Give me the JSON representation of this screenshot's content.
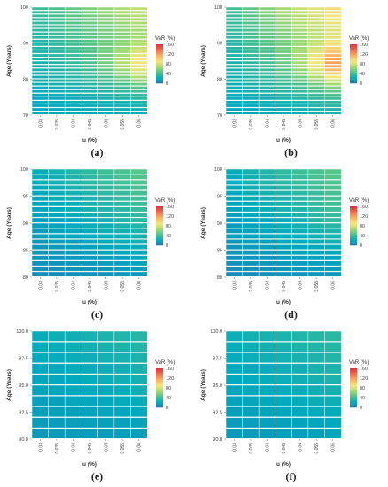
{
  "chart_data": [
    {
      "type": "heatmap",
      "panel_label": "(a)",
      "xlabel": "u (%)",
      "ylabel": "Age (Years)",
      "x_ticks": [
        "0.03",
        "0.035",
        "0.04",
        "0.045",
        "0.05",
        "0.055",
        "0.06"
      ],
      "y_ticks": [
        "70",
        "80",
        "90",
        "100"
      ],
      "ylim": [
        70,
        100
      ],
      "rows": 30,
      "cols": 7,
      "legend_title": "VaR (%)",
      "legend_ticks": [
        "160",
        "120",
        "80",
        "40",
        "0"
      ],
      "legend_range": [
        0,
        160
      ],
      "corner_values": {
        "low_u_low_age": 18,
        "low_u_high_age": 38,
        "high_u_low_age": 22,
        "high_u_high_age": 75,
        "peak": 118,
        "peak_at_u": "0.06",
        "peak_at_age": 84
      }
    },
    {
      "type": "heatmap",
      "panel_label": "(b)",
      "xlabel": "u (%)",
      "ylabel": "Age (Years)",
      "x_ticks": [
        "0.03",
        "0.035",
        "0.04",
        "0.045",
        "0.05",
        "0.055",
        "0.06"
      ],
      "y_ticks": [
        "70",
        "80",
        "90",
        "100"
      ],
      "ylim": [
        70,
        100
      ],
      "rows": 30,
      "cols": 7,
      "legend_title": "VaR (%)",
      "legend_ticks": [
        "160",
        "120",
        "80",
        "40",
        "0"
      ],
      "legend_range": [
        0,
        160
      ],
      "corner_values": {
        "low_u_low_age": 18,
        "low_u_high_age": 40,
        "high_u_low_age": 25,
        "high_u_high_age": 95,
        "peak": 155,
        "peak_at_u": "0.06",
        "peak_at_age": 84
      }
    },
    {
      "type": "heatmap",
      "panel_label": "(c)",
      "xlabel": "u (%)",
      "ylabel": "Age (Years)",
      "x_ticks": [
        "0.03",
        "0.035",
        "0.04",
        "0.045",
        "0.05",
        "0.055",
        "0.06"
      ],
      "y_ticks": [
        "80",
        "85",
        "90",
        "95",
        "100"
      ],
      "ylim": [
        80,
        100
      ],
      "rows": 20,
      "cols": 7,
      "legend_title": "VaR (%)",
      "legend_ticks": [
        "160",
        "120",
        "80",
        "40",
        "0"
      ],
      "legend_range": [
        0,
        160
      ],
      "corner_values": {
        "low_u_low_age": 8,
        "low_u_high_age": 22,
        "high_u_low_age": 12,
        "high_u_high_age": 48,
        "peak": 50,
        "peak_at_u": "0.06",
        "peak_at_age": 92
      }
    },
    {
      "type": "heatmap",
      "panel_label": "(d)",
      "xlabel": "u (%)",
      "ylabel": "Age (Years)",
      "x_ticks": [
        "0.03",
        "0.035",
        "0.04",
        "0.045",
        "0.05",
        "0.055",
        "0.06"
      ],
      "y_ticks": [
        "80",
        "85",
        "90",
        "95",
        "100"
      ],
      "ylim": [
        80,
        100
      ],
      "rows": 20,
      "cols": 7,
      "legend_title": "VaR (%)",
      "legend_ticks": [
        "160",
        "120",
        "80",
        "40",
        "0"
      ],
      "legend_range": [
        0,
        160
      ],
      "corner_values": {
        "low_u_low_age": 8,
        "low_u_high_age": 22,
        "high_u_low_age": 12,
        "high_u_high_age": 48,
        "peak": 52,
        "peak_at_u": "0.06",
        "peak_at_age": 92
      }
    },
    {
      "type": "heatmap",
      "panel_label": "(e)",
      "xlabel": "u (%)",
      "ylabel": "Age (Years)",
      "x_ticks": [
        "0.03",
        "0.035",
        "0.04",
        "0.045",
        "0.05",
        "0.055",
        "0.06"
      ],
      "y_ticks": [
        "90.0",
        "92.5",
        "95.0",
        "97.5",
        "100.0"
      ],
      "ylim": [
        90,
        100
      ],
      "rows": 10,
      "cols": 7,
      "legend_title": "VaR (%)",
      "legend_ticks": [
        "160",
        "120",
        "80",
        "40",
        "0"
      ],
      "legend_range": [
        0,
        160
      ],
      "corner_values": {
        "low_u_low_age": 12,
        "low_u_high_age": 22,
        "high_u_low_age": 14,
        "high_u_high_age": 32,
        "peak": 34,
        "peak_at_u": "0.06",
        "peak_at_age": 95
      }
    },
    {
      "type": "heatmap",
      "panel_label": "(f)",
      "xlabel": "u (%)",
      "ylabel": "Age (Years)",
      "x_ticks": [
        "0.03",
        "0.035",
        "0.04",
        "0.045",
        "0.05",
        "0.055",
        "0.06"
      ],
      "y_ticks": [
        "90.0",
        "92.5",
        "95.0",
        "97.5",
        "100.0"
      ],
      "ylim": [
        90,
        100
      ],
      "rows": 10,
      "cols": 7,
      "legend_title": "VaR (%)",
      "legend_ticks": [
        "160",
        "120",
        "80",
        "40",
        "0"
      ],
      "legend_range": [
        0,
        160
      ],
      "corner_values": {
        "low_u_low_age": 12,
        "low_u_high_age": 24,
        "high_u_low_age": 16,
        "high_u_high_age": 34,
        "peak": 36,
        "peak_at_u": "0.06",
        "peak_at_age": 95
      }
    }
  ]
}
